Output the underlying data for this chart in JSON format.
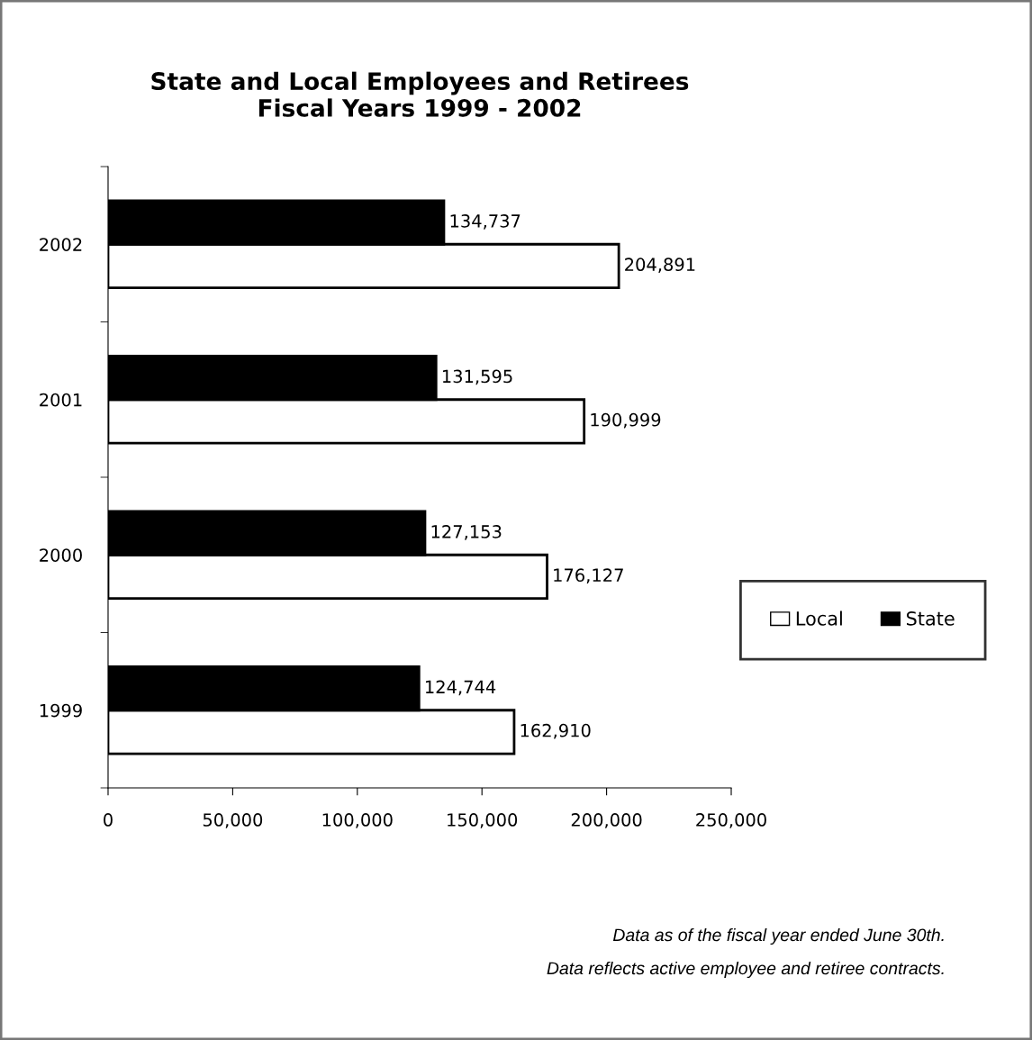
{
  "chart_data": {
    "type": "bar",
    "orientation": "horizontal",
    "title": "State and Local Employees and Retirees\nFiscal Years 1999 - 2002",
    "categories": [
      "2002",
      "2001",
      "2000",
      "1999"
    ],
    "series": [
      {
        "name": "Local",
        "color": "#ffffff",
        "values": [
          204891,
          190999,
          176127,
          162910
        ],
        "value_labels": [
          "204,891",
          "190,999",
          "176,127",
          "162,910"
        ]
      },
      {
        "name": "State",
        "color": "#000000",
        "values": [
          134737,
          131595,
          127153,
          124744
        ],
        "value_labels": [
          "134,737",
          "131,595",
          "127,153",
          "124,744"
        ]
      }
    ],
    "xlim": [
      0,
      250000
    ],
    "xticks": [
      0,
      {
        "value": 50000,
        "label": "50,000"
      },
      {
        "value": 100000,
        "label": "100,000"
      },
      {
        "value": 150000,
        "label": "150,000"
      },
      {
        "value": 200000,
        "label": "200,000"
      },
      {
        "value": 250000,
        "label": "250,000"
      }
    ],
    "grid": false,
    "legend": "right",
    "annotations": [
      "Data as of the fiscal year ended June 30th.",
      "Data reflects active employee and retiree contracts."
    ]
  }
}
